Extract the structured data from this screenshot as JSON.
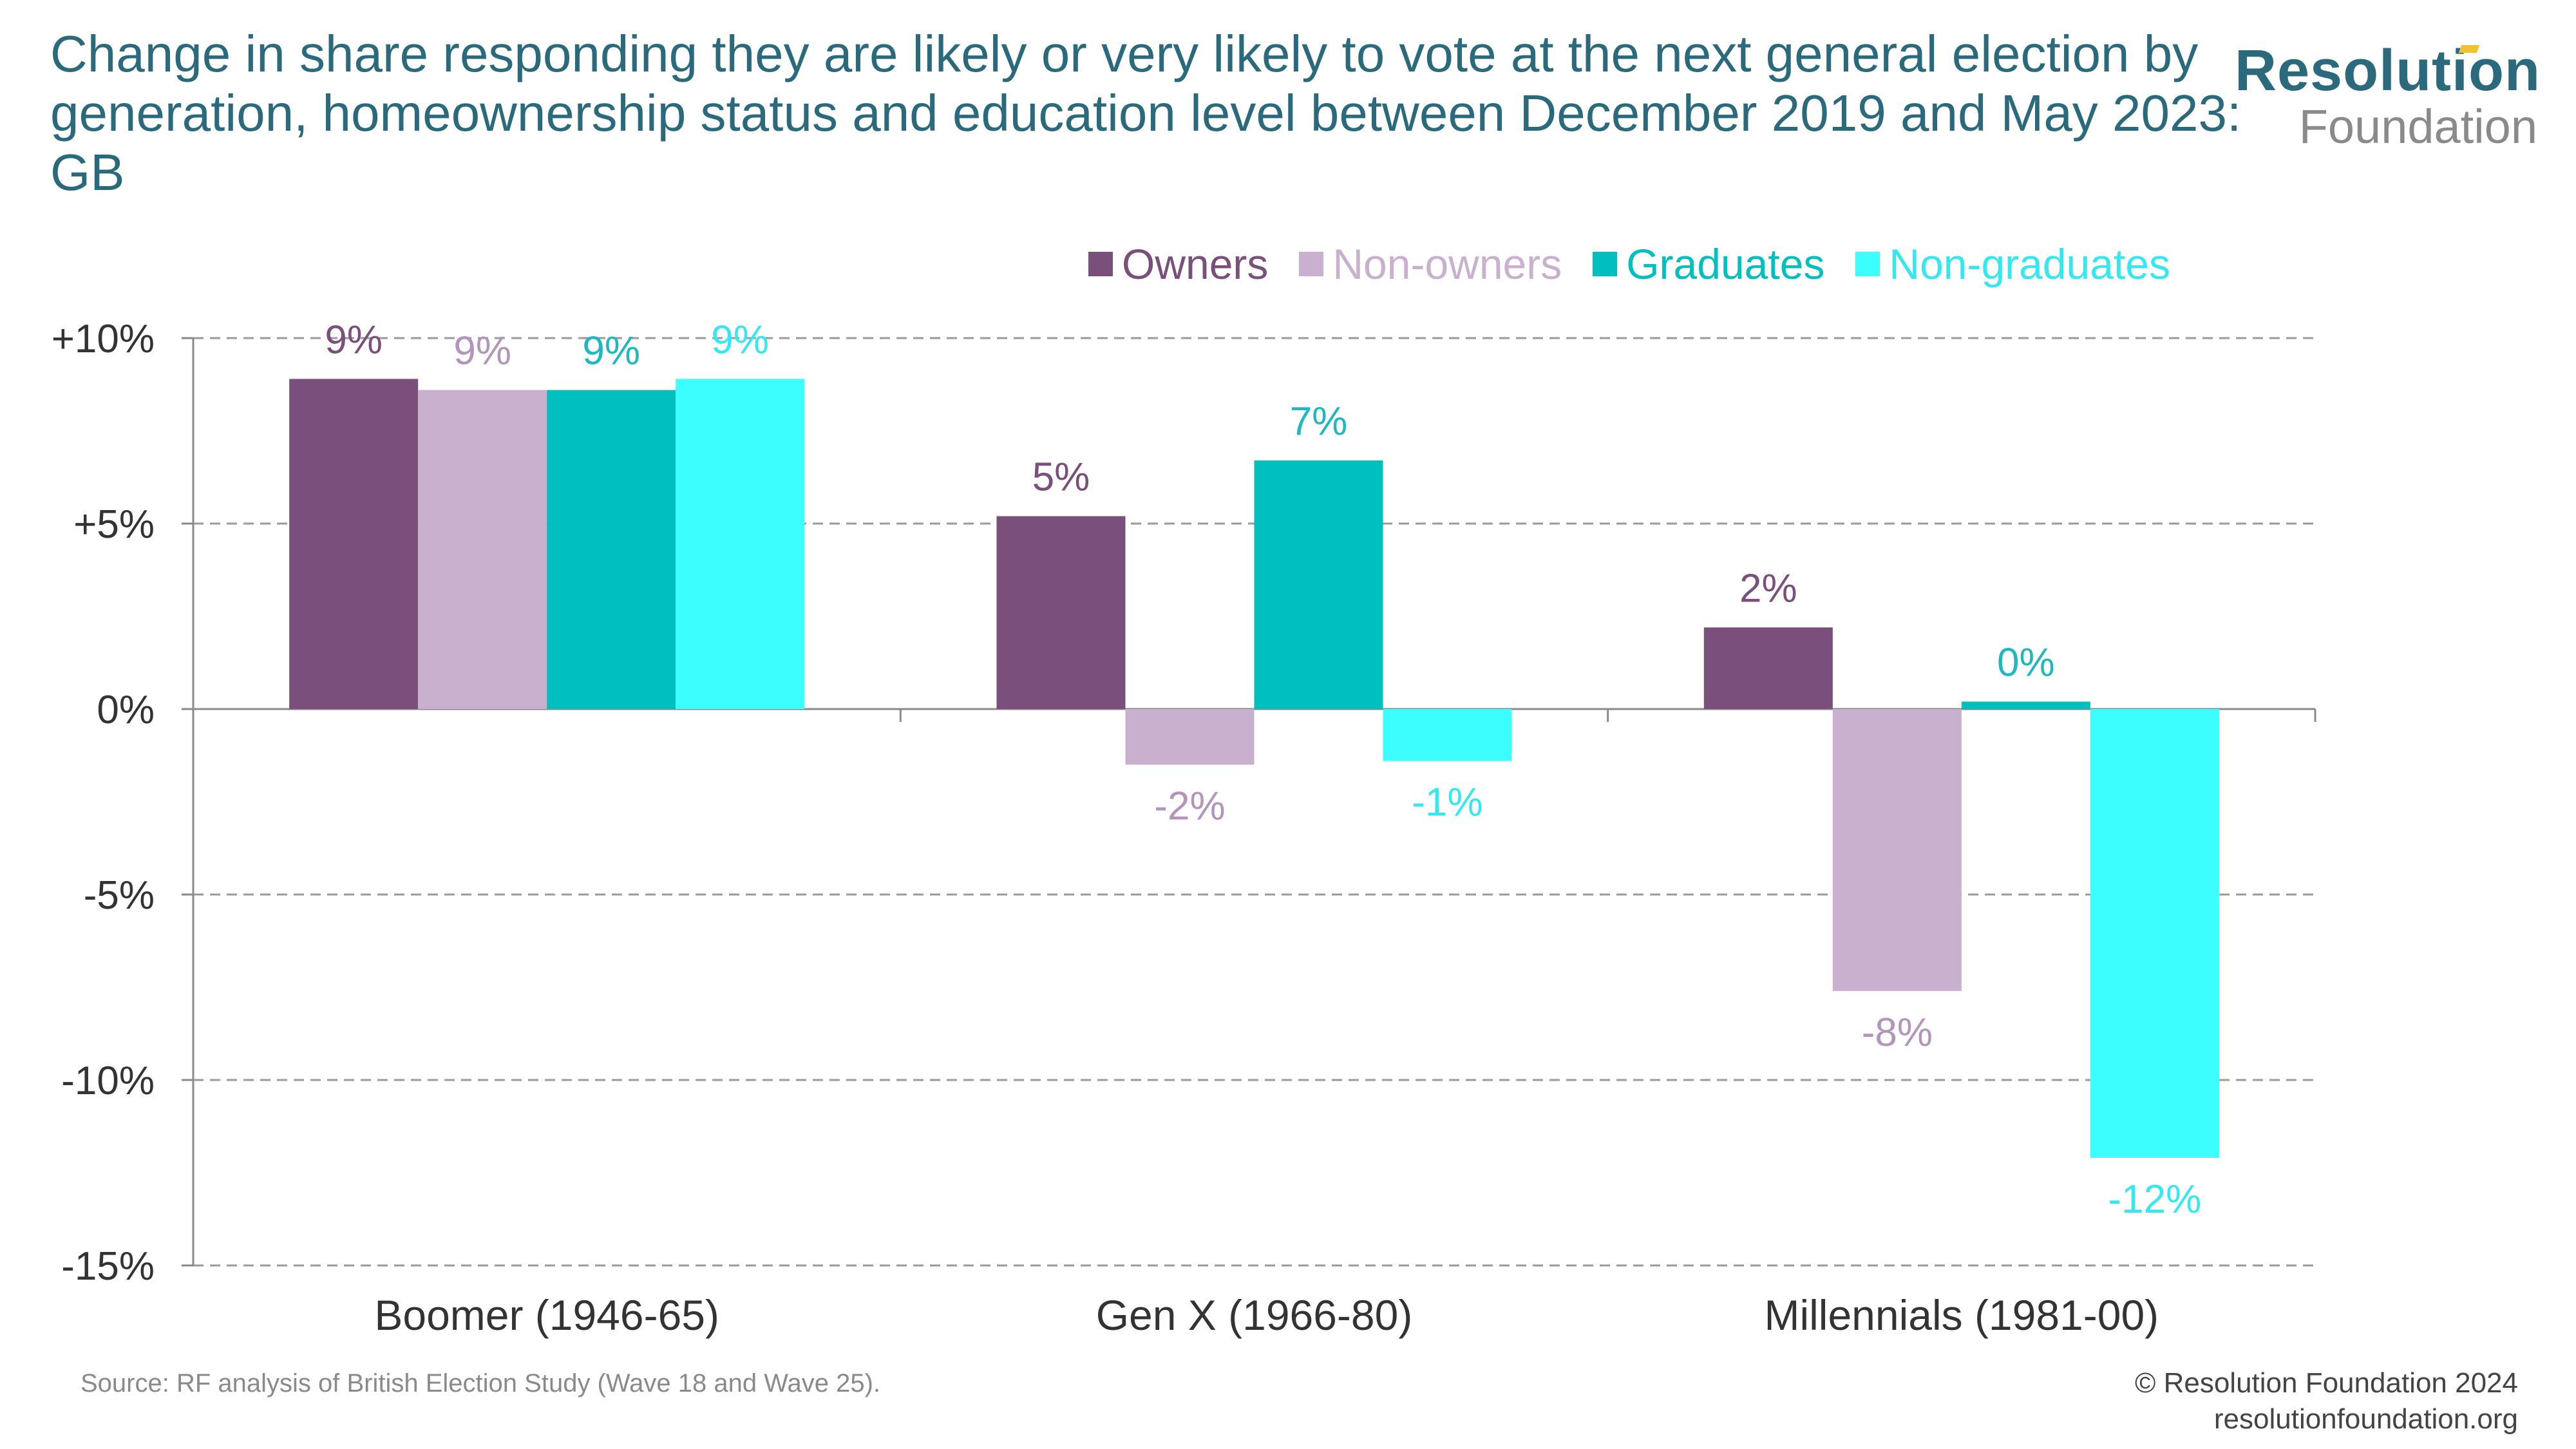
{
  "title": "Change in share responding they are likely or very likely to vote at the next general election by generation, homeownership status and education level between December 2019 and May 2023: GB",
  "logo": {
    "line1": "Resolution",
    "line2": "Foundation"
  },
  "colors": {
    "owners": "#7a4f7c",
    "non_owners": "#c9b0cf",
    "graduates": "#00c0bf",
    "non_graduates": "#3cfefe",
    "axis": "#8a8a8a",
    "grid": "#9a9a9a",
    "title": "#2a6a7c",
    "text": "#333333"
  },
  "chart_data": {
    "type": "bar",
    "categories": [
      "Boomer (1946-65)",
      "Gen X (1966-80)",
      "Millennials (1981-00)"
    ],
    "series": [
      {
        "name": "Owners",
        "color": "#7a4f7c",
        "values": [
          8.9,
          5.2,
          2.2
        ],
        "labels": [
          "9%",
          "5%",
          "2%"
        ]
      },
      {
        "name": "Non-owners",
        "color": "#c9b0cf",
        "values": [
          8.6,
          -1.5,
          -7.6
        ],
        "labels": [
          "9%",
          "-2%",
          "-8%"
        ]
      },
      {
        "name": "Graduates",
        "color": "#00c0bf",
        "values": [
          8.6,
          6.7,
          0.2
        ],
        "labels": [
          "9%",
          "7%",
          "0%"
        ]
      },
      {
        "name": "Non-graduates",
        "color": "#3cfefe",
        "values": [
          8.9,
          -1.4,
          -12.1
        ],
        "labels": [
          "9%",
          "-1%",
          "-12%"
        ]
      }
    ],
    "ylim": [
      -15,
      10
    ],
    "yticks": [
      10,
      5,
      0,
      -5,
      -10,
      -15
    ],
    "ytick_labels": [
      "+10%",
      "+5%",
      "0%",
      "-5%",
      "-10%",
      "-15%"
    ],
    "grid": true,
    "legend": "top-right"
  },
  "footer": {
    "source": "Source: RF analysis of British Election Study (Wave 18 and Wave 25).",
    "copyright": "© Resolution Foundation 2024",
    "website": "resolutionfoundation.org"
  }
}
